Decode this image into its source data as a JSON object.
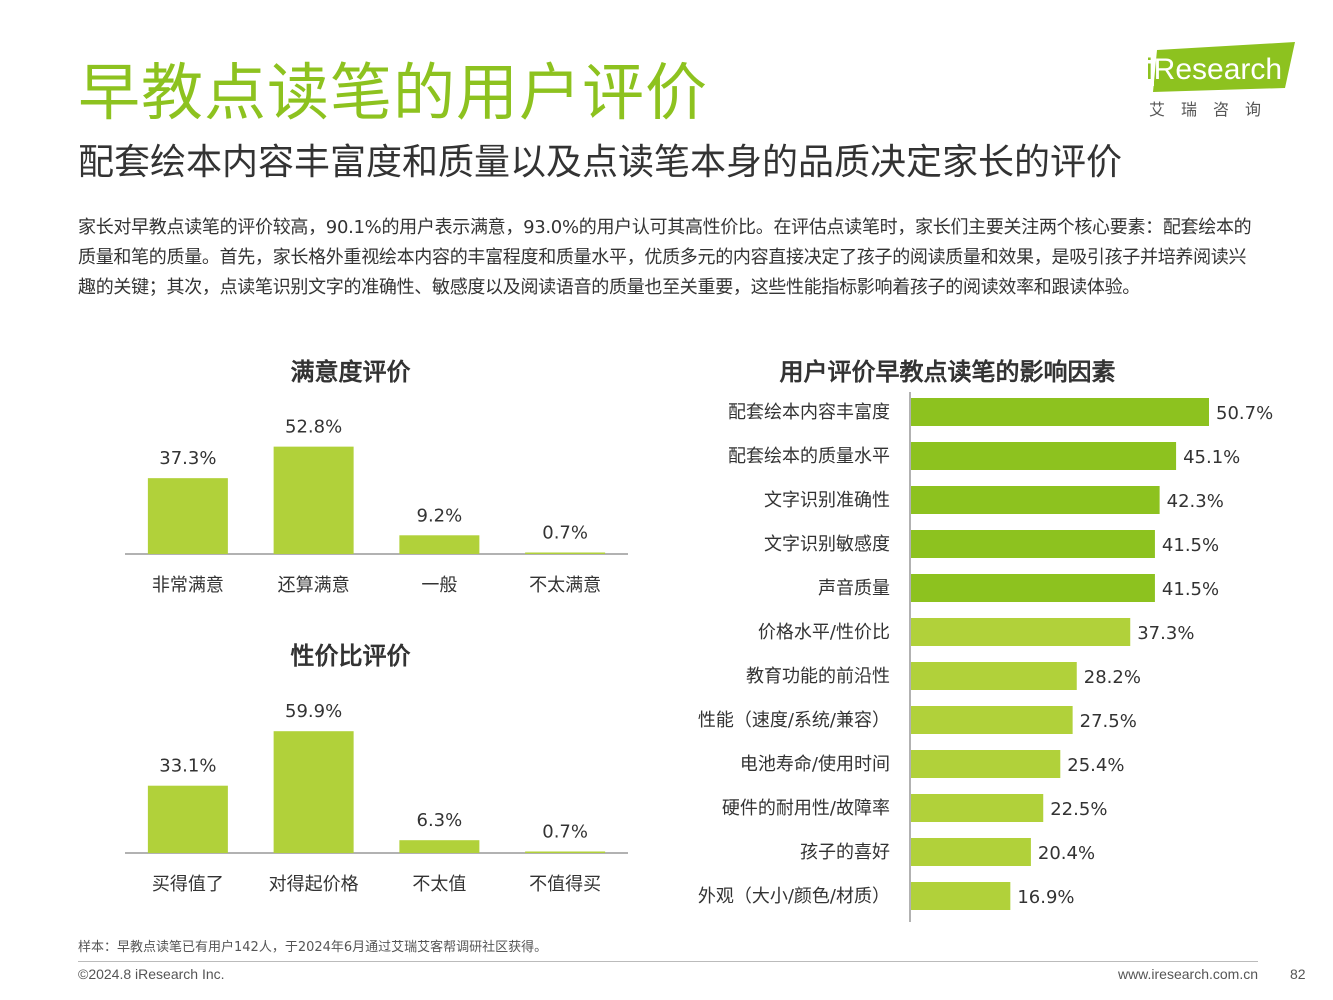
{
  "header": {
    "title": "早教点读笔的用户评价",
    "subtitle": "配套绘本内容丰富度和质量以及点读笔本身的品质决定家长的评价"
  },
  "logo": {
    "i": "i",
    "research": "Research",
    "cn": "艾瑞咨询"
  },
  "paragraph": "家长对早教点读笔的评价较高，90.1%的用户表示满意，93.0%的用户认可其高性价比。在评估点读笔时，家长们主要关注两个核心要素：配套绘本的质量和笔的质量。首先，家长格外重视绘本内容的丰富程度和质量水平，优质多元的内容直接决定了孩子的阅读质量和效果，是吸引孩子并培养阅读兴趣的关键；其次，点读笔识别文字的准确性、敏感度以及阅读语音的质量也至关重要，这些性能指标影响着孩子的阅读效率和跟读体验。",
  "colors": {
    "accent": "#8dc21f",
    "bar_dark": "#8dc21f",
    "bar_light": "#b1d13a",
    "text": "#333333"
  },
  "chart_data": [
    {
      "type": "bar",
      "title": "满意度评价",
      "categories": [
        "非常满意",
        "还算满意",
        "一般",
        "不太满意"
      ],
      "values": [
        37.3,
        52.8,
        9.2,
        0.7
      ],
      "labels": [
        "37.3%",
        "52.8%",
        "9.2%",
        "0.7%"
      ],
      "ylim": [
        0,
        60
      ],
      "unit": "%"
    },
    {
      "type": "bar",
      "title": "性价比评价",
      "categories": [
        "买得值了",
        "对得起价格",
        "不太值",
        "不值得买"
      ],
      "values": [
        33.1,
        59.9,
        6.3,
        0.7
      ],
      "labels": [
        "33.1%",
        "59.9%",
        "6.3%",
        "0.7%"
      ],
      "ylim": [
        0,
        60
      ],
      "unit": "%"
    },
    {
      "type": "bar",
      "orientation": "horizontal",
      "title": "用户评价早教点读笔的影响因素",
      "categories": [
        "配套绘本内容丰富度",
        "配套绘本的质量水平",
        "文字识别准确性",
        "文字识别敏感度",
        "声音质量",
        "价格水平/性价比",
        "教育功能的前沿性",
        "性能（速度/系统/兼容）",
        "电池寿命/使用时间",
        "硬件的耐用性/故障率",
        "孩子的喜好",
        "外观（大小/颜色/材质）"
      ],
      "values": [
        50.7,
        45.1,
        42.3,
        41.5,
        41.5,
        37.3,
        28.2,
        27.5,
        25.4,
        22.5,
        20.4,
        16.9
      ],
      "labels": [
        "50.7%",
        "45.1%",
        "42.3%",
        "41.5%",
        "41.5%",
        "37.3%",
        "28.2%",
        "27.5%",
        "25.4%",
        "22.5%",
        "20.4%",
        "16.9%"
      ],
      "highlight_count": 5,
      "xlim": [
        0,
        50.7
      ],
      "unit": "%"
    }
  ],
  "footer": {
    "note": "样本：早教点读笔已有用户142人，于2024年6月通过艾瑞艾客帮调研社区获得。",
    "copyright": "©2024.8 iResearch Inc.",
    "website": "www.iresearch.com.cn",
    "page": "82"
  }
}
